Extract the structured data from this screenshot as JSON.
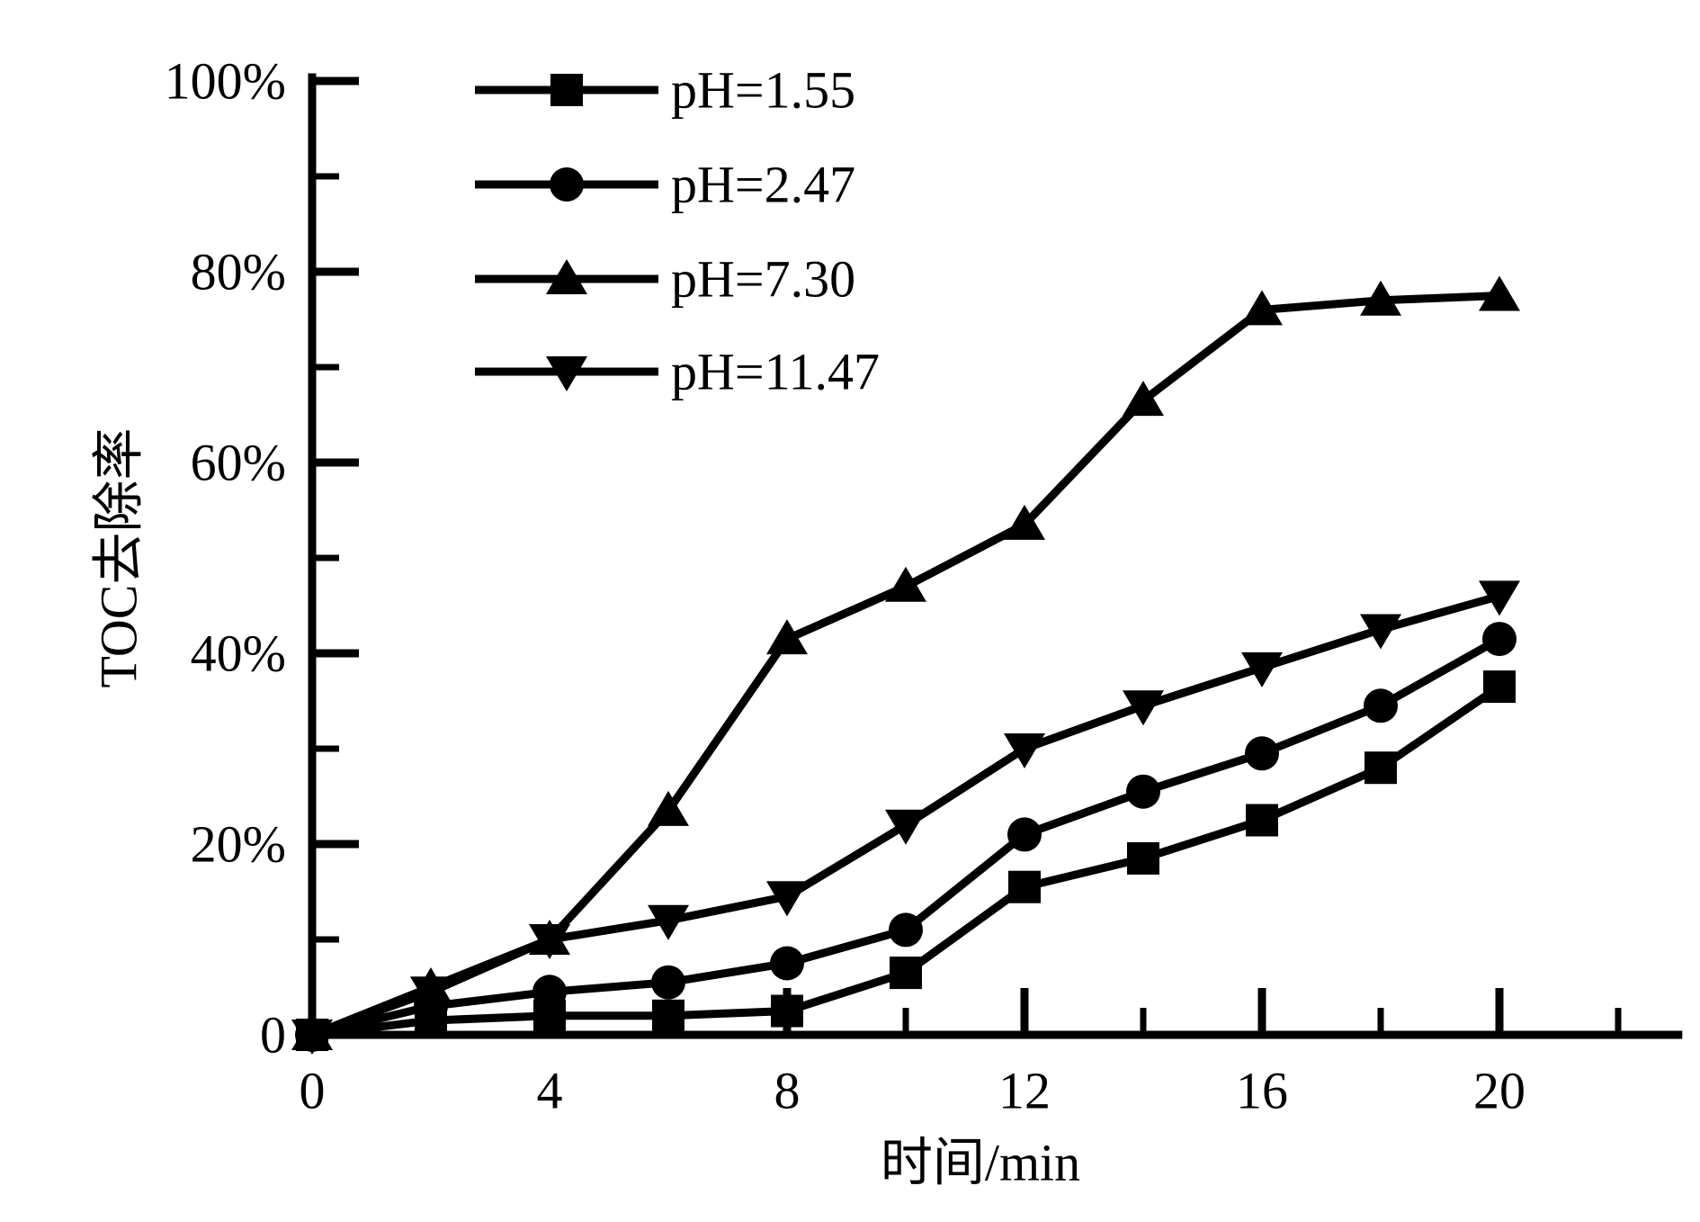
{
  "figure": {
    "background": "#ffffff",
    "ink": "#000000"
  },
  "chart_data": {
    "type": "line",
    "title": "",
    "xlabel": "时间/min",
    "ylabel": "TOC去除率",
    "x": [
      0,
      2,
      4,
      6,
      8,
      10,
      12,
      14,
      16,
      18,
      20
    ],
    "series": [
      {
        "name": "pH=1.55",
        "marker": "square",
        "values": [
          0,
          1.5,
          2,
          2,
          2.5,
          6.5,
          15.5,
          18.5,
          22.5,
          28,
          36.5
        ]
      },
      {
        "name": "pH=2.47",
        "marker": "circle",
        "values": [
          0,
          3,
          4.5,
          5.5,
          7.5,
          11,
          21,
          25.5,
          29.5,
          34.5,
          41.5
        ]
      },
      {
        "name": "pH=7.30",
        "marker": "triangle-up",
        "values": [
          0,
          5,
          10,
          23.5,
          41.5,
          47,
          53.5,
          66.5,
          76,
          77,
          77.5
        ]
      },
      {
        "name": "pH=11.47",
        "marker": "triangle-down",
        "values": [
          0,
          4.5,
          10,
          12,
          14.5,
          22,
          30,
          34.5,
          38.5,
          42.5,
          46
        ]
      }
    ],
    "x_major_ticks": [
      0,
      4,
      8,
      12,
      16,
      20
    ],
    "x_minor_ticks": [
      2,
      6,
      10,
      14,
      18,
      22
    ],
    "x_tick_labels": [
      "0",
      "4",
      "8",
      "12",
      "16",
      "20"
    ],
    "y_major_ticks": [
      0,
      20,
      40,
      60,
      80,
      100
    ],
    "y_minor_ticks": [
      10,
      30,
      50,
      70,
      90
    ],
    "y_tick_labels": [
      "0",
      "20%",
      "40%",
      "60%",
      "80%",
      "100%"
    ],
    "xlim": [
      0,
      22.3
    ],
    "ylim": [
      0,
      100
    ],
    "grid": false,
    "legend_position": "upper-left-inside",
    "line_color": "#000000"
  }
}
